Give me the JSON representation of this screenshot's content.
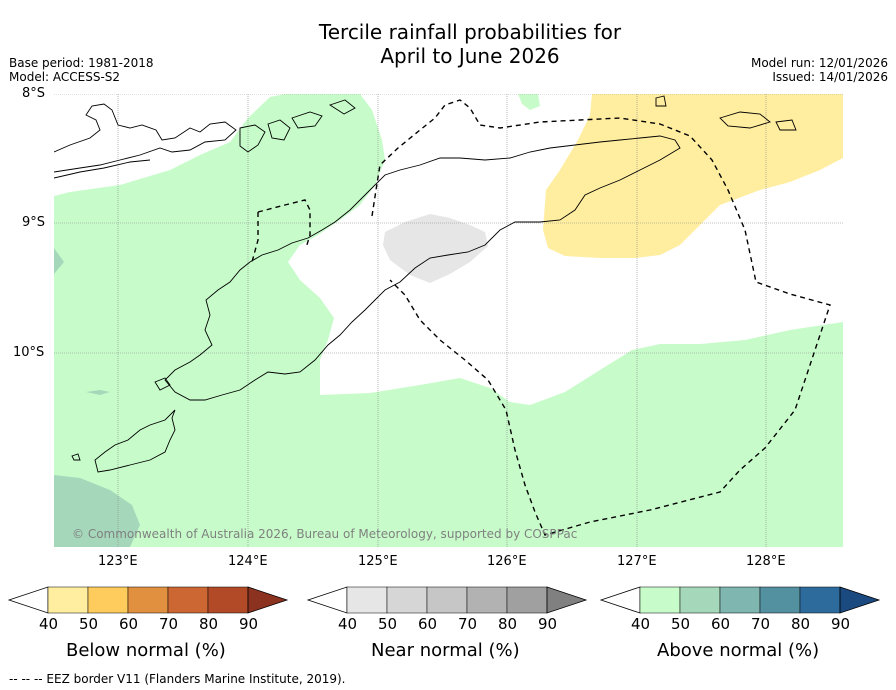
{
  "title": {
    "line1": "Tercile rainfall probabilities for",
    "line2": "April to June 2026"
  },
  "meta": {
    "base_period": "Base period: 1981-2018",
    "model": "Model: ACCESS-S2",
    "model_run": "Model run: 12/01/2026",
    "issued": "Issued: 14/01/2026"
  },
  "map": {
    "lat_labels": [
      "8°S",
      "9°S",
      "10°S"
    ],
    "lon_labels": [
      "123°E",
      "124°E",
      "125°E",
      "126°E",
      "127°E",
      "128°E"
    ],
    "copyright": "© Commonwealth of Australia 2026, Bureau of Meteorology, supported by COSPPac"
  },
  "colorbars": [
    {
      "label": "Below normal (%)",
      "ticks": [
        "40",
        "50",
        "60",
        "70",
        "80",
        "90"
      ],
      "colors": [
        "#ffffff",
        "#ffeda0",
        "#fecc5c",
        "#e0903f",
        "#cc6633",
        "#b24a28",
        "#8c3220"
      ]
    },
    {
      "label": "Near normal (%)",
      "ticks": [
        "40",
        "50",
        "60",
        "70",
        "80",
        "90"
      ],
      "colors": [
        "#ffffff",
        "#e6e6e6",
        "#d6d6d6",
        "#c6c6c6",
        "#b2b2b2",
        "#a0a0a0",
        "#808080"
      ]
    },
    {
      "label": "Above normal (%)",
      "ticks": [
        "40",
        "50",
        "60",
        "70",
        "80",
        "90"
      ],
      "colors": [
        "#ffffff",
        "#c7fcca",
        "#a5d8bb",
        "#7fb6b0",
        "#5390a0",
        "#2e6b9d",
        "#1a4a80"
      ]
    }
  ],
  "footer": "-- -- -- EEZ border V11 (Flanders Marine Institute, 2019).",
  "colors": {
    "above_40": "#c7fcca",
    "above_50": "#a5d8bb",
    "below_40": "#ffeda0",
    "near_40": "#e6e6e6"
  }
}
